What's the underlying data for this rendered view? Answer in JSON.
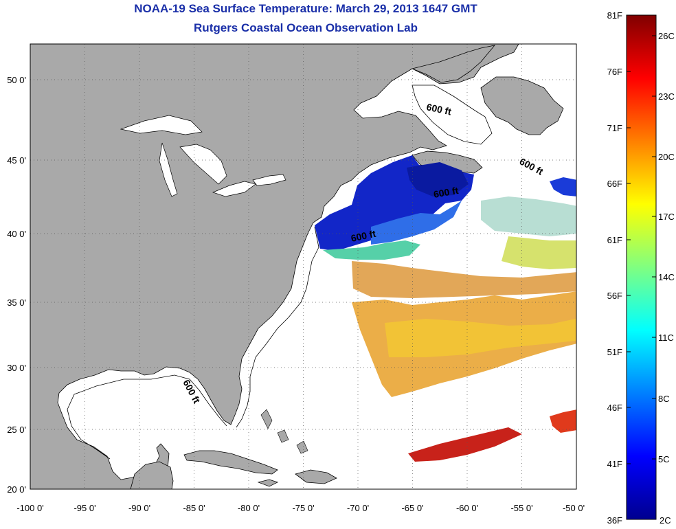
{
  "title": "NOAA-19 Sea Surface Temperature:  March 29, 2013 1647 GMT",
  "subtitle": "Rutgers Coastal Ocean Observation Lab",
  "x_ticks": [
    "-100 0'",
    "-95 0'",
    "-90 0'",
    "-85 0'",
    "-80 0'",
    "-75 0'",
    "-70 0'",
    "-65 0'",
    "-60 0'",
    "-55 0'",
    "-50 0'"
  ],
  "y_ticks": [
    "50 0'",
    "45 0'",
    "40 0'",
    "35 0'",
    "30 0'",
    "25 0'",
    "20 0'"
  ],
  "contour_labels": [
    "600 ft",
    "600 ft",
    "600 ft",
    "600 ft",
    "600 ft"
  ],
  "colorbar": {
    "fahrenheit_labels": [
      "81F",
      "76F",
      "71F",
      "66F",
      "61F",
      "56F",
      "51F",
      "46F",
      "41F",
      "36F"
    ],
    "celsius_labels": [
      "26C",
      "23C",
      "20C",
      "17C",
      "14C",
      "11C",
      "8C",
      "5C",
      "2C"
    ],
    "colormap": "jet"
  },
  "colors": {
    "land": "#a9a9a9",
    "ocean": "#ffffff",
    "title": "#1a2fa8",
    "grid": "#666666",
    "cold": "#0a23c8",
    "warm": "#e89a1c",
    "hot": "#c81a14"
  }
}
